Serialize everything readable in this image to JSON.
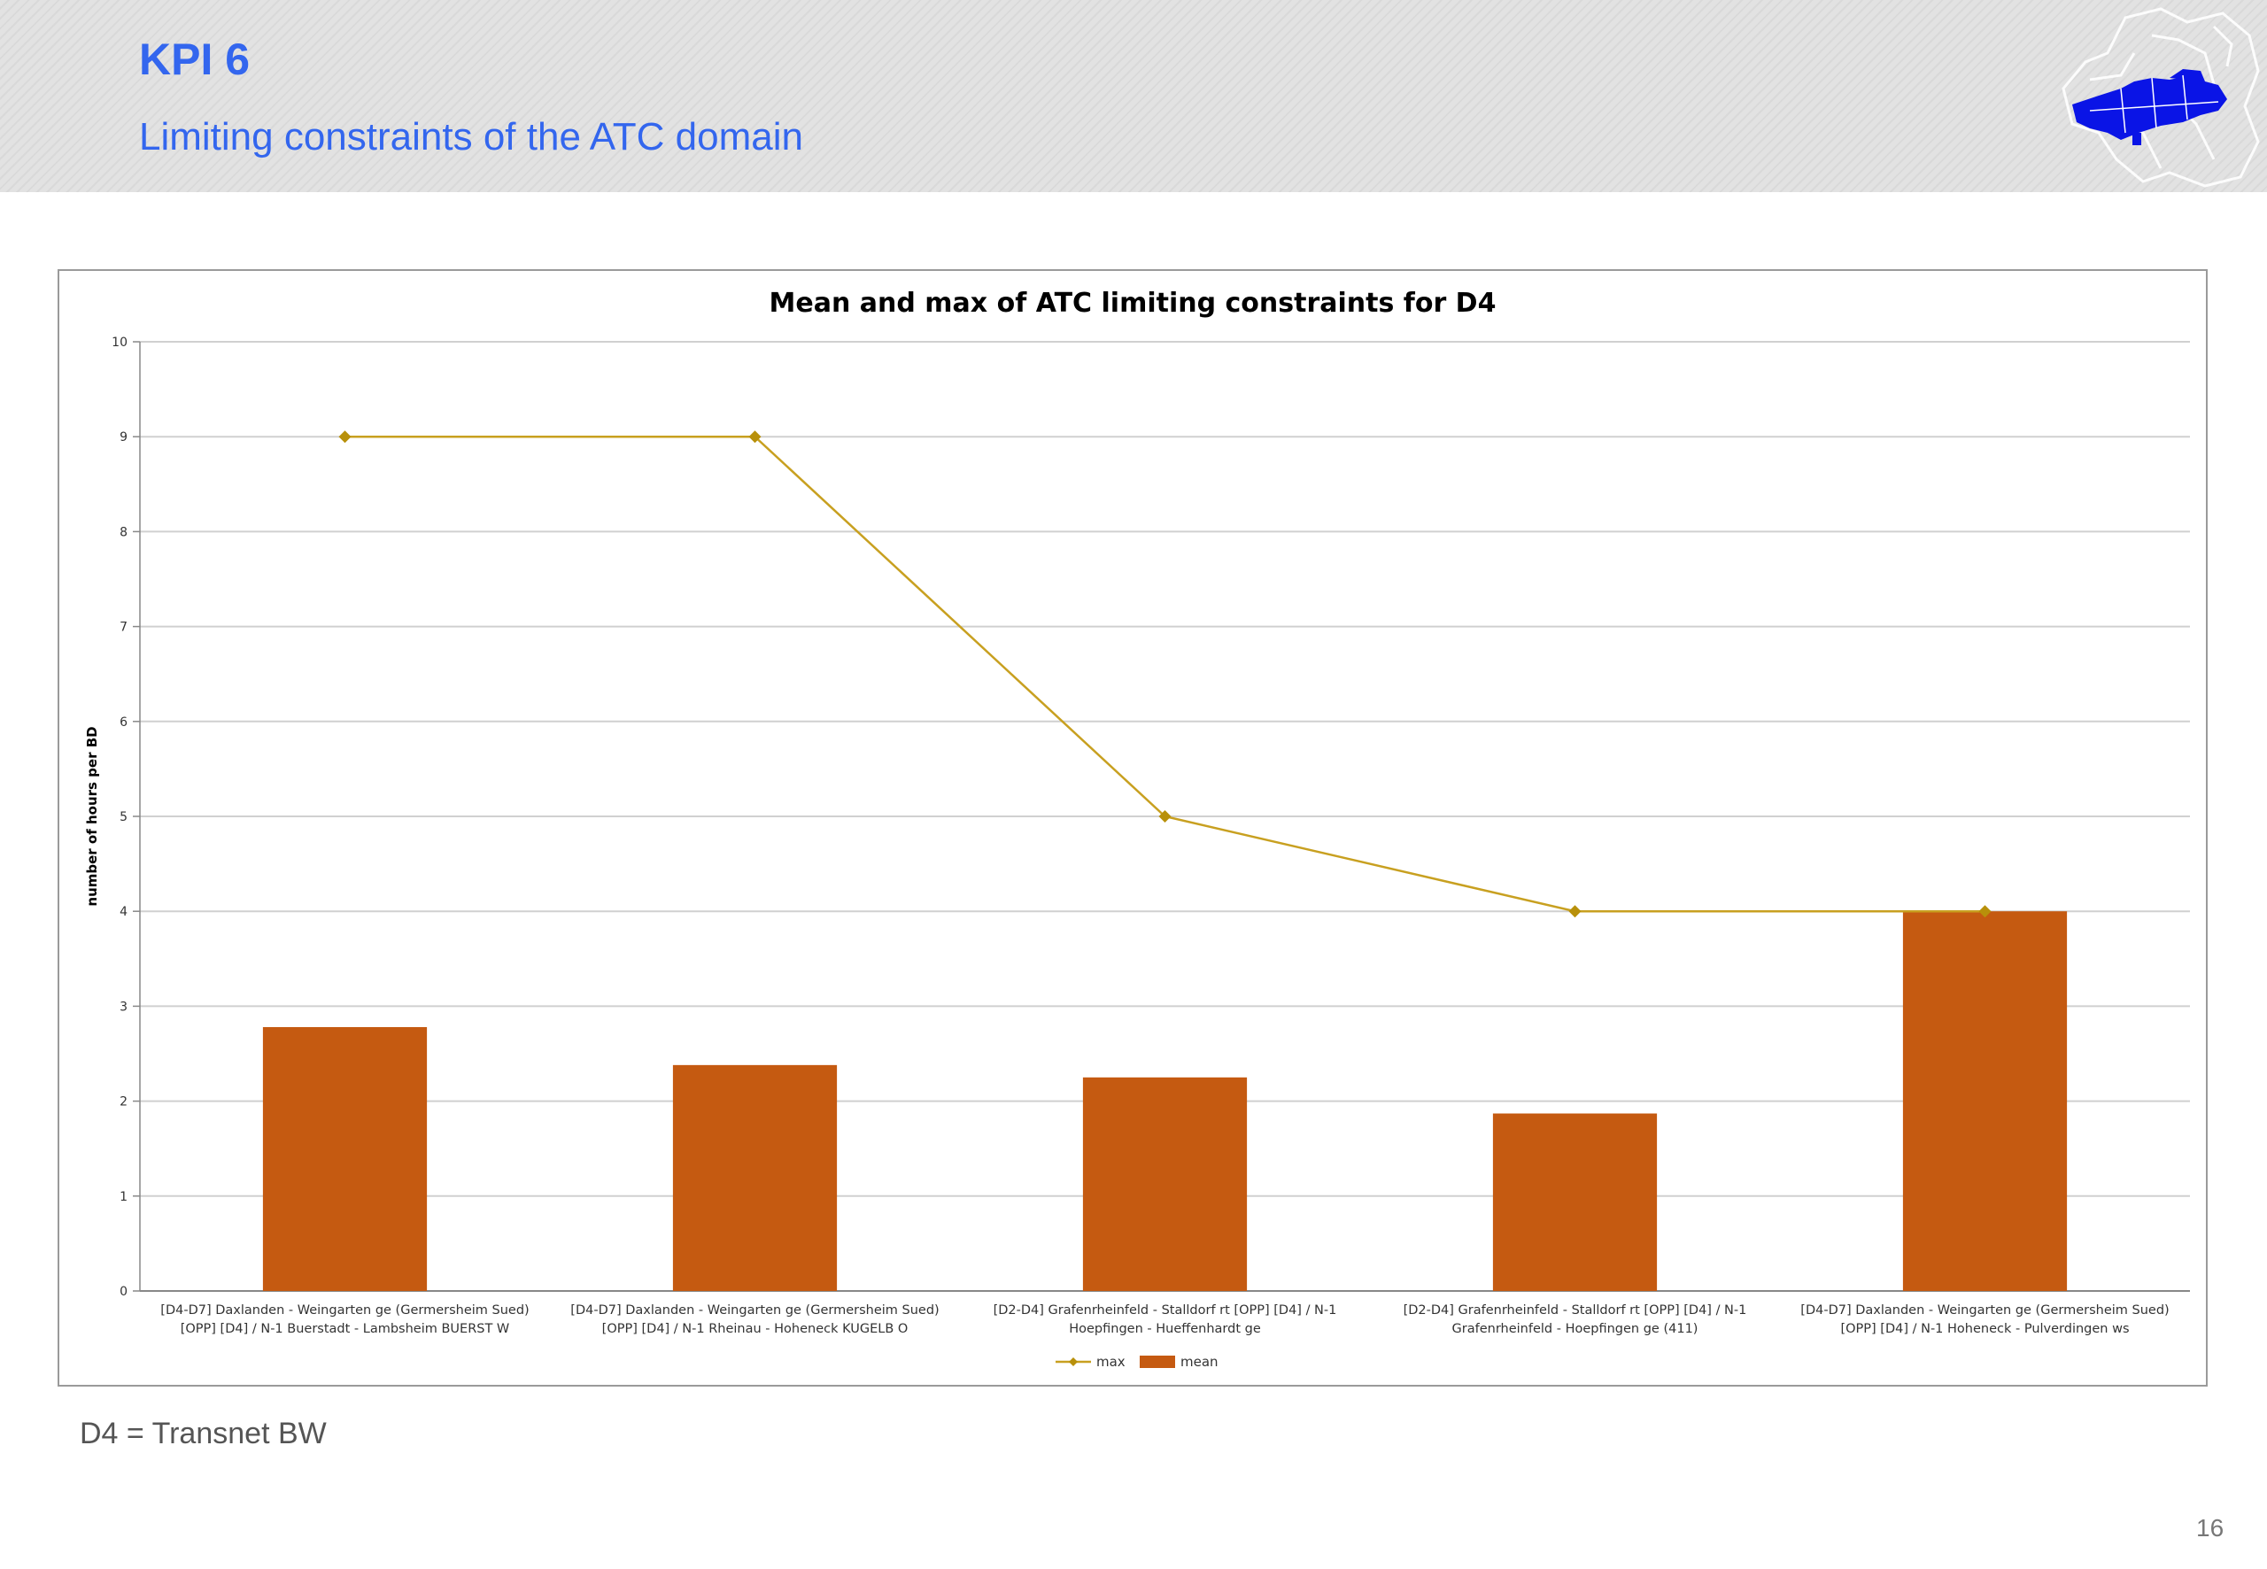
{
  "slide": {
    "title": "KPI 6",
    "subtitle": "Limiting constraints of the ATC domain",
    "footnote": "D4 = Transnet BW",
    "page_number": "16"
  },
  "chart_data": {
    "type": "bar",
    "title": "Mean and max of ATC limiting constraints for D4",
    "ylabel": "number of hours per BD",
    "xlabel": "",
    "ylim": [
      0,
      10
    ],
    "yticks": [
      "0",
      "1",
      "2",
      "3",
      "4",
      "5",
      "6",
      "7",
      "8",
      "9",
      "10"
    ],
    "grid": true,
    "legend_position": "bottom",
    "categories": [
      [
        "[D4-D7] Daxlanden - Weingarten ge (Germersheim Sued)",
        "[OPP] [D4] / N-1 Buerstadt - Lambsheim BUERST W"
      ],
      [
        "[D4-D7] Daxlanden - Weingarten ge (Germersheim Sued)",
        "[OPP] [D4] / N-1 Rheinau - Hoheneck KUGELB O"
      ],
      [
        "[D2-D4] Grafenrheinfeld - Stalldorf rt [OPP] [D4] / N-1",
        "Hoepfingen - Hueffenhardt ge"
      ],
      [
        "[D2-D4] Grafenrheinfeld - Stalldorf rt [OPP] [D4] / N-1",
        "Grafenrheinfeld - Hoepfingen ge (411)"
      ],
      [
        "[D4-D7] Daxlanden - Weingarten ge (Germersheim Sued)",
        "[OPP] [D4] / N-1 Hoheneck - Pulverdingen ws"
      ]
    ],
    "series": [
      {
        "name": "max",
        "kind": "line",
        "color": "#c8a020",
        "values": [
          9,
          9,
          5,
          4,
          4
        ]
      },
      {
        "name": "mean",
        "kind": "bar",
        "color": "#c55a11",
        "values": [
          2.78,
          2.38,
          2.25,
          1.87,
          4.0
        ]
      }
    ]
  }
}
